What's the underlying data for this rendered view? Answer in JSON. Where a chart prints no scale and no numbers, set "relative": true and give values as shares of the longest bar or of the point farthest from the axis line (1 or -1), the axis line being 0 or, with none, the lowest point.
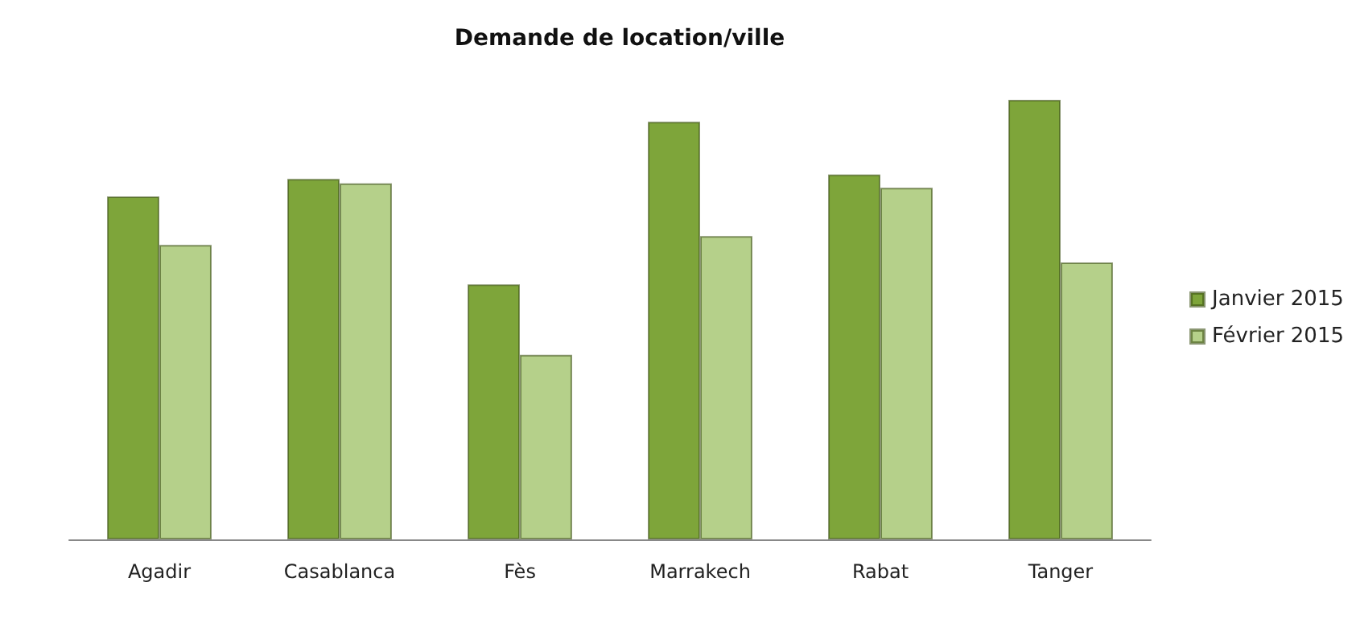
{
  "chart_data": {
    "type": "bar",
    "title": "Demande de location/ville",
    "categories": [
      "Agadir",
      "Casablanca",
      "Fès",
      "Marrakech",
      "Rabat",
      "Tanger"
    ],
    "series": [
      {
        "name": "Janvier 2015",
        "color": "#7ea53a",
        "values": [
          0.78,
          0.82,
          0.58,
          0.95,
          0.83,
          1
        ]
      },
      {
        "name": "Février 2015",
        "color": "#b5d08a",
        "values": [
          0.67,
          0.81,
          0.42,
          0.69,
          0.8,
          0.63
        ]
      }
    ],
    "relative": true,
    "legend": "right"
  }
}
